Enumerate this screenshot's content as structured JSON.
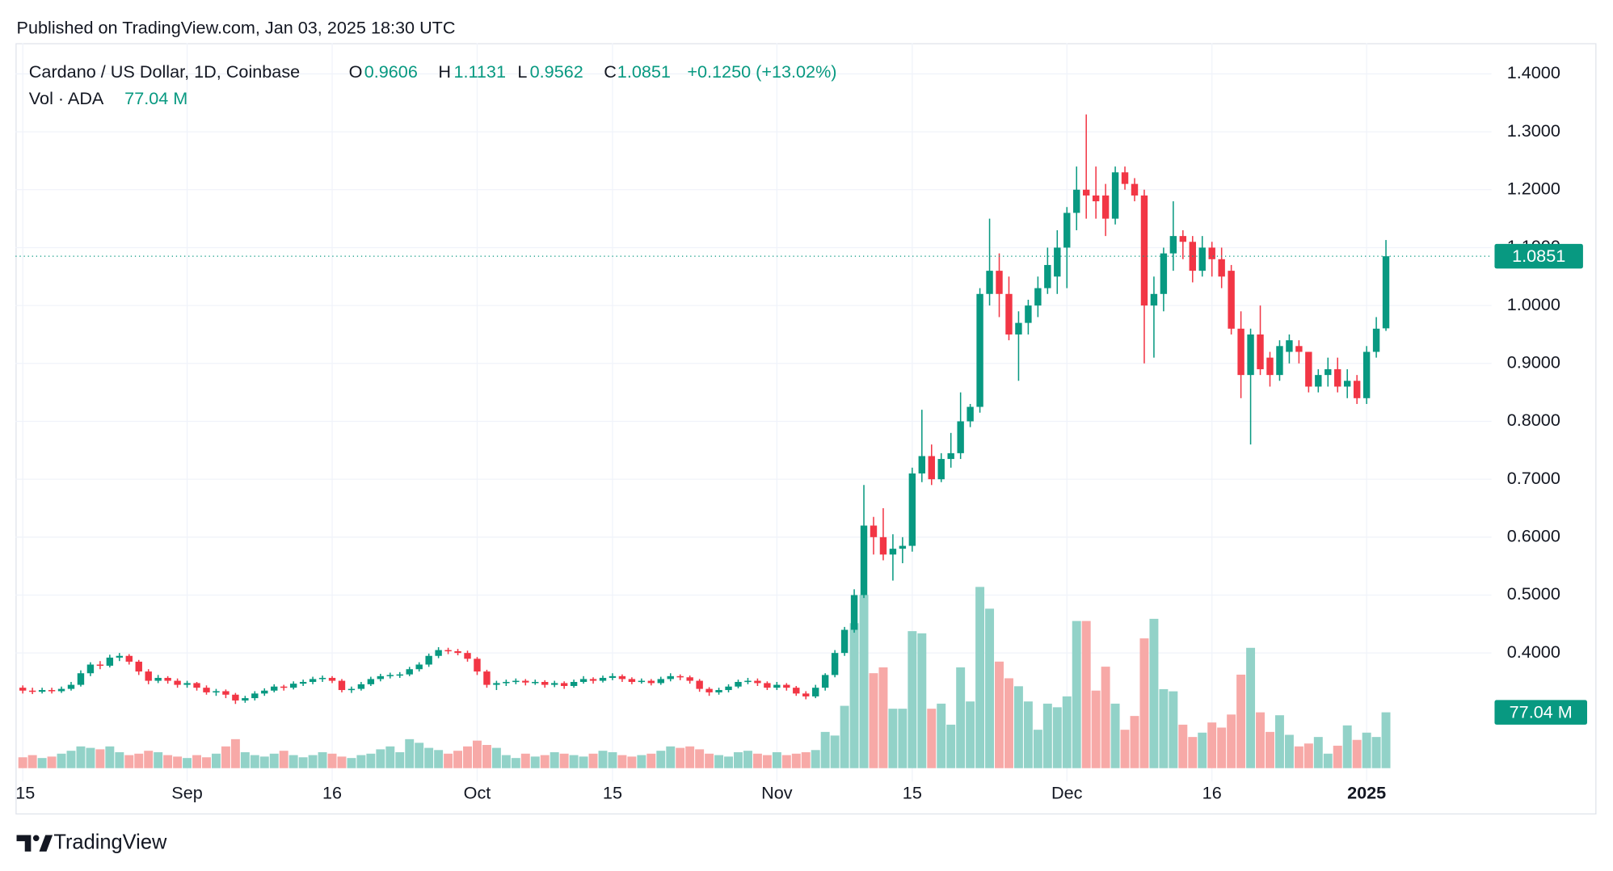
{
  "header": {
    "published": "Published on TradingView.com, Jan 03, 2025 18:30 UTC"
  },
  "chart_data": {
    "type": "candlestick",
    "title": "Cardano / US Dollar, 1D, Coinbase",
    "open_label": "O",
    "high_label": "H",
    "low_label": "L",
    "close_label": "C",
    "change_label": "+0.1250 (+13.02%)",
    "volume_title": "Vol · ADA",
    "volume_label": "77.04 M",
    "up_color": "#089981",
    "down_color": "#f23645",
    "volume_up_color": "#92d2c8",
    "volume_down_color": "#f7a9a7",
    "grid": true,
    "categories": [
      "15",
      null,
      null,
      null,
      null,
      null,
      null,
      null,
      null,
      null,
      null,
      null,
      null,
      null,
      null,
      null,
      null,
      "Sep",
      null,
      null,
      null,
      null,
      null,
      null,
      null,
      null,
      null,
      null,
      null,
      null,
      null,
      null,
      "16",
      null,
      null,
      null,
      null,
      null,
      null,
      null,
      null,
      null,
      null,
      null,
      null,
      null,
      null,
      "Oct",
      null,
      null,
      null,
      null,
      null,
      null,
      null,
      null,
      null,
      null,
      null,
      null,
      null,
      "15",
      null,
      null,
      null,
      null,
      null,
      null,
      null,
      null,
      null,
      null,
      null,
      null,
      null,
      null,
      null,
      null,
      "Nov",
      null,
      null,
      null,
      null,
      null,
      null,
      null,
      null,
      null,
      null,
      null,
      null,
      null,
      "15",
      null,
      null,
      null,
      null,
      null,
      null,
      null,
      null,
      null,
      null,
      null,
      null,
      null,
      null,
      null,
      "Dec",
      null,
      null,
      null,
      null,
      null,
      null,
      null,
      null,
      null,
      null,
      null,
      null,
      null,
      null,
      "16",
      null,
      null,
      null,
      null,
      null,
      null,
      null,
      null,
      null,
      null,
      null,
      null,
      null,
      null,
      null,
      "2025",
      null,
      null
    ],
    "ohlc": [
      [
        0.34,
        0.344,
        0.33,
        0.335
      ],
      [
        0.335,
        0.34,
        0.329,
        0.333
      ],
      [
        0.333,
        0.34,
        0.33,
        0.336
      ],
      [
        0.336,
        0.34,
        0.33,
        0.334
      ],
      [
        0.334,
        0.342,
        0.331,
        0.338
      ],
      [
        0.338,
        0.35,
        0.335,
        0.345
      ],
      [
        0.345,
        0.37,
        0.342,
        0.365
      ],
      [
        0.365,
        0.384,
        0.36,
        0.38
      ],
      [
        0.38,
        0.386,
        0.372,
        0.378
      ],
      [
        0.378,
        0.397,
        0.375,
        0.392
      ],
      [
        0.392,
        0.4,
        0.386,
        0.395
      ],
      [
        0.395,
        0.398,
        0.38,
        0.385
      ],
      [
        0.385,
        0.388,
        0.362,
        0.368
      ],
      [
        0.368,
        0.372,
        0.346,
        0.352
      ],
      [
        0.352,
        0.362,
        0.348,
        0.357
      ],
      [
        0.357,
        0.36,
        0.347,
        0.352
      ],
      [
        0.352,
        0.356,
        0.34,
        0.345
      ],
      [
        0.345,
        0.352,
        0.34,
        0.348
      ],
      [
        0.348,
        0.35,
        0.335,
        0.34
      ],
      [
        0.34,
        0.344,
        0.328,
        0.332
      ],
      [
        0.332,
        0.338,
        0.326,
        0.334
      ],
      [
        0.334,
        0.337,
        0.322,
        0.328
      ],
      [
        0.328,
        0.331,
        0.312,
        0.318
      ],
      [
        0.318,
        0.326,
        0.314,
        0.322
      ],
      [
        0.322,
        0.334,
        0.318,
        0.33
      ],
      [
        0.33,
        0.339,
        0.326,
        0.335
      ],
      [
        0.335,
        0.346,
        0.332,
        0.342
      ],
      [
        0.342,
        0.345,
        0.335,
        0.34
      ],
      [
        0.34,
        0.351,
        0.337,
        0.347
      ],
      [
        0.347,
        0.354,
        0.343,
        0.35
      ],
      [
        0.35,
        0.359,
        0.346,
        0.355
      ],
      [
        0.355,
        0.361,
        0.35,
        0.357
      ],
      [
        0.357,
        0.36,
        0.348,
        0.352
      ],
      [
        0.352,
        0.355,
        0.332,
        0.336
      ],
      [
        0.336,
        0.342,
        0.331,
        0.338
      ],
      [
        0.338,
        0.35,
        0.335,
        0.346
      ],
      [
        0.346,
        0.359,
        0.343,
        0.355
      ],
      [
        0.355,
        0.364,
        0.351,
        0.36
      ],
      [
        0.36,
        0.366,
        0.356,
        0.362
      ],
      [
        0.362,
        0.367,
        0.357,
        0.363
      ],
      [
        0.363,
        0.376,
        0.36,
        0.372
      ],
      [
        0.372,
        0.384,
        0.368,
        0.38
      ],
      [
        0.38,
        0.399,
        0.376,
        0.395
      ],
      [
        0.395,
        0.41,
        0.391,
        0.405
      ],
      [
        0.405,
        0.409,
        0.398,
        0.403
      ],
      [
        0.403,
        0.407,
        0.396,
        0.4
      ],
      [
        0.4,
        0.404,
        0.385,
        0.39
      ],
      [
        0.39,
        0.393,
        0.362,
        0.368
      ],
      [
        0.368,
        0.371,
        0.34,
        0.345
      ],
      [
        0.345,
        0.352,
        0.336,
        0.348
      ],
      [
        0.348,
        0.354,
        0.343,
        0.35
      ],
      [
        0.35,
        0.356,
        0.346,
        0.352
      ],
      [
        0.352,
        0.355,
        0.344,
        0.349
      ],
      [
        0.349,
        0.354,
        0.345,
        0.35
      ],
      [
        0.35,
        0.353,
        0.34,
        0.345
      ],
      [
        0.345,
        0.352,
        0.341,
        0.348
      ],
      [
        0.348,
        0.351,
        0.338,
        0.343
      ],
      [
        0.343,
        0.354,
        0.34,
        0.35
      ],
      [
        0.35,
        0.36,
        0.347,
        0.355
      ],
      [
        0.355,
        0.358,
        0.347,
        0.352
      ],
      [
        0.352,
        0.361,
        0.349,
        0.357
      ],
      [
        0.357,
        0.365,
        0.353,
        0.36
      ],
      [
        0.36,
        0.363,
        0.35,
        0.355
      ],
      [
        0.355,
        0.358,
        0.346,
        0.35
      ],
      [
        0.35,
        0.356,
        0.347,
        0.352
      ],
      [
        0.352,
        0.355,
        0.344,
        0.348
      ],
      [
        0.348,
        0.359,
        0.345,
        0.355
      ],
      [
        0.355,
        0.365,
        0.351,
        0.36
      ],
      [
        0.36,
        0.363,
        0.353,
        0.358
      ],
      [
        0.358,
        0.361,
        0.347,
        0.352
      ],
      [
        0.352,
        0.355,
        0.333,
        0.338
      ],
      [
        0.338,
        0.341,
        0.326,
        0.332
      ],
      [
        0.332,
        0.34,
        0.328,
        0.336
      ],
      [
        0.336,
        0.346,
        0.332,
        0.342
      ],
      [
        0.342,
        0.354,
        0.339,
        0.35
      ],
      [
        0.35,
        0.357,
        0.346,
        0.352
      ],
      [
        0.352,
        0.356,
        0.343,
        0.348
      ],
      [
        0.348,
        0.351,
        0.336,
        0.34
      ],
      [
        0.34,
        0.35,
        0.336,
        0.345
      ],
      [
        0.345,
        0.348,
        0.335,
        0.34
      ],
      [
        0.34,
        0.343,
        0.326,
        0.33
      ],
      [
        0.33,
        0.334,
        0.32,
        0.325
      ],
      [
        0.325,
        0.345,
        0.322,
        0.34
      ],
      [
        0.34,
        0.365,
        0.335,
        0.362
      ],
      [
        0.362,
        0.405,
        0.358,
        0.4
      ],
      [
        0.4,
        0.445,
        0.395,
        0.44
      ],
      [
        0.44,
        0.51,
        0.435,
        0.5
      ],
      [
        0.5,
        0.69,
        0.495,
        0.62
      ],
      [
        0.62,
        0.635,
        0.57,
        0.6
      ],
      [
        0.6,
        0.65,
        0.56,
        0.57
      ],
      [
        0.57,
        0.605,
        0.525,
        0.58
      ],
      [
        0.58,
        0.6,
        0.555,
        0.585
      ],
      [
        0.585,
        0.72,
        0.575,
        0.71
      ],
      [
        0.71,
        0.82,
        0.695,
        0.74
      ],
      [
        0.74,
        0.76,
        0.69,
        0.7
      ],
      [
        0.7,
        0.745,
        0.695,
        0.735
      ],
      [
        0.735,
        0.78,
        0.72,
        0.745
      ],
      [
        0.745,
        0.85,
        0.735,
        0.8
      ],
      [
        0.8,
        0.83,
        0.79,
        0.825
      ],
      [
        0.825,
        1.03,
        0.815,
        1.02
      ],
      [
        1.02,
        1.15,
        1.0,
        1.06
      ],
      [
        1.06,
        1.09,
        0.98,
        1.02
      ],
      [
        1.02,
        1.05,
        0.94,
        0.95
      ],
      [
        0.95,
        0.99,
        0.87,
        0.97
      ],
      [
        0.97,
        1.01,
        0.95,
        1.0
      ],
      [
        1.0,
        1.05,
        0.98,
        1.03
      ],
      [
        1.03,
        1.1,
        1.02,
        1.07
      ],
      [
        1.05,
        1.13,
        1.02,
        1.1
      ],
      [
        1.1,
        1.17,
        1.03,
        1.16
      ],
      [
        1.16,
        1.24,
        1.13,
        1.2
      ],
      [
        1.2,
        1.33,
        1.15,
        1.19
      ],
      [
        1.19,
        1.24,
        1.15,
        1.18
      ],
      [
        1.19,
        1.21,
        1.12,
        1.15
      ],
      [
        1.15,
        1.24,
        1.14,
        1.23
      ],
      [
        1.23,
        1.24,
        1.2,
        1.21
      ],
      [
        1.21,
        1.22,
        1.18,
        1.19
      ],
      [
        1.19,
        1.2,
        0.9,
        1.0
      ],
      [
        1.0,
        1.05,
        0.91,
        1.02
      ],
      [
        1.02,
        1.1,
        0.99,
        1.09
      ],
      [
        1.09,
        1.18,
        1.06,
        1.12
      ],
      [
        1.12,
        1.13,
        1.08,
        1.11
      ],
      [
        1.11,
        1.12,
        1.04,
        1.06
      ],
      [
        1.06,
        1.12,
        1.05,
        1.1
      ],
      [
        1.1,
        1.11,
        1.05,
        1.08
      ],
      [
        1.08,
        1.1,
        1.03,
        1.05
      ],
      [
        1.06,
        1.07,
        0.95,
        0.96
      ],
      [
        0.96,
        0.99,
        0.84,
        0.88
      ],
      [
        0.88,
        0.96,
        0.76,
        0.95
      ],
      [
        0.95,
        1.0,
        0.88,
        0.89
      ],
      [
        0.91,
        0.92,
        0.86,
        0.88
      ],
      [
        0.88,
        0.94,
        0.87,
        0.93
      ],
      [
        0.92,
        0.95,
        0.9,
        0.94
      ],
      [
        0.93,
        0.94,
        0.9,
        0.92
      ],
      [
        0.92,
        0.92,
        0.85,
        0.86
      ],
      [
        0.86,
        0.89,
        0.85,
        0.88
      ],
      [
        0.88,
        0.91,
        0.86,
        0.89
      ],
      [
        0.89,
        0.91,
        0.85,
        0.86
      ],
      [
        0.86,
        0.89,
        0.84,
        0.87
      ],
      [
        0.87,
        0.88,
        0.83,
        0.84
      ],
      [
        0.84,
        0.93,
        0.83,
        0.92
      ],
      [
        0.92,
        0.98,
        0.91,
        0.96
      ],
      [
        0.9606,
        1.1131,
        0.9562,
        1.0851
      ]
    ],
    "volume": [
      15,
      18,
      14,
      16,
      20,
      24,
      30,
      28,
      26,
      30,
      22,
      18,
      20,
      24,
      22,
      18,
      16,
      14,
      18,
      15,
      20,
      30,
      40,
      22,
      18,
      16,
      20,
      24,
      18,
      15,
      18,
      22,
      20,
      16,
      14,
      18,
      20,
      26,
      30,
      22,
      40,
      35,
      28,
      25,
      20,
      24,
      30,
      38,
      32,
      28,
      18,
      14,
      20,
      16,
      18,
      22,
      20,
      18,
      16,
      20,
      24,
      22,
      18,
      16,
      18,
      20,
      24,
      30,
      28,
      30,
      26,
      20,
      18,
      16,
      22,
      24,
      20,
      18,
      22,
      18,
      20,
      22,
      25,
      50,
      45,
      86,
      200,
      239,
      131,
      139,
      82,
      82,
      189,
      186,
      82,
      89,
      60,
      139,
      92,
      250,
      220,
      147,
      124,
      113,
      92,
      53,
      89,
      84,
      99,
      203,
      203,
      107,
      140,
      89,
      53,
      72,
      179,
      206,
      109,
      106,
      60,
      43,
      49,
      63,
      56,
      74,
      129,
      166,
      77,
      50,
      73,
      46,
      30,
      34,
      43,
      20,
      31,
      59,
      39,
      49,
      43,
      77.04
    ],
    "ylim": [
      0.178,
      1.453
    ],
    "yticks": [
      {
        "value": 0.4,
        "label": "0.4000"
      },
      {
        "value": 0.5,
        "label": "0.5000"
      },
      {
        "value": 0.6,
        "label": "0.6000"
      },
      {
        "value": 0.7,
        "label": "0.7000"
      },
      {
        "value": 0.8,
        "label": "0.8000"
      },
      {
        "value": 0.9,
        "label": "0.9000"
      },
      {
        "value": 1.0,
        "label": "1.0000"
      },
      {
        "value": 1.1,
        "label": "1.1000"
      },
      {
        "value": 1.2,
        "label": "1.2000"
      },
      {
        "value": 1.3,
        "label": "1.3000"
      },
      {
        "value": 1.4,
        "label": "1.4000"
      }
    ],
    "y2lim": [
      0,
      1000
    ]
  },
  "footer": {
    "brand": "TradingView"
  }
}
